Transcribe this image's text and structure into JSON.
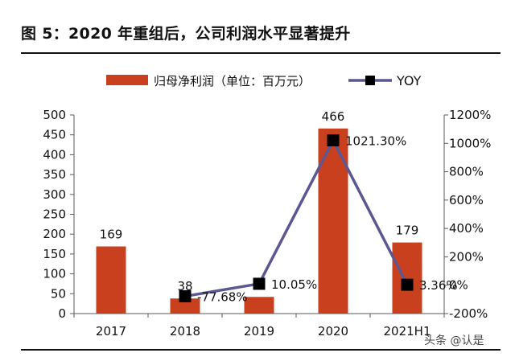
{
  "figure": {
    "title": "图 5：2020 年重组后，公司利润水平显著提升",
    "watermark": "头条 @认是"
  },
  "chart_data": {
    "type": "bar",
    "categories": [
      "2017",
      "2018",
      "2019",
      "2020",
      "2021H1"
    ],
    "series": [
      {
        "name": "归母净利润（单位：百万元）",
        "type": "bar",
        "axis": "left",
        "values": [
          169,
          38,
          42,
          466,
          179
        ],
        "labels": [
          "169",
          "38",
          "",
          "466",
          "179"
        ]
      },
      {
        "name": "YOY",
        "type": "line",
        "axis": "right",
        "values": [
          null,
          -77.68,
          10.05,
          1021.3,
          3.36
        ],
        "labels": [
          "",
          "-77.68%",
          "10.05%",
          "1021.30%",
          "3.36%"
        ]
      }
    ],
    "y_left": {
      "min": 0,
      "max": 500,
      "ticks": [
        0,
        50,
        100,
        150,
        200,
        250,
        300,
        350,
        400,
        450,
        500
      ],
      "tick_labels": [
        "0",
        "50",
        "100",
        "150",
        "200",
        "250",
        "300",
        "350",
        "400",
        "450",
        "500"
      ]
    },
    "y_right": {
      "min": -200,
      "max": 1200,
      "ticks": [
        -200,
        0,
        200,
        400,
        600,
        800,
        1000,
        1200
      ],
      "tick_labels": [
        "-200%",
        "0%",
        "200%",
        "400%",
        "600%",
        "800%",
        "1000%",
        "1200%"
      ]
    },
    "legend": {
      "position": "top"
    },
    "grid": false,
    "colors": {
      "bar": "#c8401e",
      "line": "#5b5891",
      "marker": "#000000",
      "axis": "#595959"
    }
  }
}
